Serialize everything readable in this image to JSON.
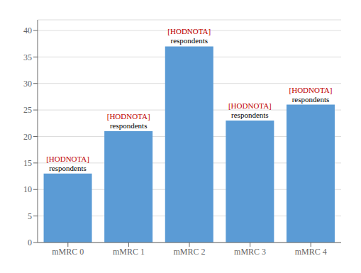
{
  "chart_data": {
    "type": "bar",
    "categories": [
      "mMRC 0",
      "mMRC 1",
      "mMRC 2",
      "mMRC 3",
      "mMRC 4"
    ],
    "values": [
      13,
      21,
      37,
      23,
      26
    ],
    "color": "#5B9BD5",
    "ylim": [
      0,
      42
    ],
    "yticks": [
      0,
      5,
      10,
      15,
      20,
      25,
      30,
      35,
      40
    ],
    "grid": true,
    "annotations": [
      {
        "text": "[HODNOTA]",
        "color": "#C00000"
      },
      {
        "text": "respondents",
        "color": "#000000"
      }
    ]
  }
}
